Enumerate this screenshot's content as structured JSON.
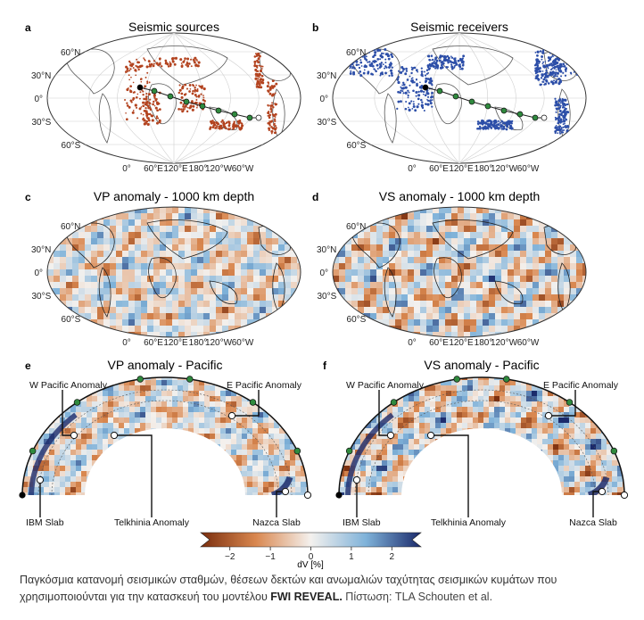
{
  "panels": [
    {
      "letter": "a",
      "title": "Seismic sources",
      "kind": "points",
      "color": "#b3431f"
    },
    {
      "letter": "b",
      "title": "Seismic receivers",
      "kind": "points",
      "color": "#2c4ea8"
    },
    {
      "letter": "c",
      "title": "VP anomaly - 1000 km depth",
      "kind": "field"
    },
    {
      "letter": "d",
      "title": "VS anomaly - 1000 km depth",
      "kind": "field"
    }
  ],
  "map_lat_ticks": [
    "60°N",
    "30°N",
    "0°",
    "30°S",
    "60°S"
  ],
  "map_lon_ticks": [
    "0°",
    "60°E",
    "120°E",
    "180°",
    "120°W",
    "60°W"
  ],
  "sections": [
    {
      "letter": "e",
      "title": "VP anomaly - Pacific",
      "labels": {
        "wpac": "W Pacific Anomaly",
        "epac": "E Pacific Anomaly",
        "ibm": "IBM Slab",
        "telk": "Telkhinia Anomaly",
        "nazca": "Nazca Slab"
      }
    },
    {
      "letter": "f",
      "title": "VS anomaly - Pacific",
      "labels": {
        "wpac": "W Pacific Anomaly",
        "epac": "E Pacific Anomaly",
        "ibm": "IBM Slab",
        "telk": "Telkhinia Anomaly",
        "nazca": "Nazca Slab"
      }
    }
  ],
  "colorbar": {
    "ticks": [
      "−2",
      "−1",
      "0",
      "1",
      "2"
    ],
    "label": "dV [%]",
    "min_color": "#7a2e0e",
    "mid_color": "#f4f1ee",
    "max_color": "#1b2a6b"
  },
  "chart_data": {
    "type": "heatmap",
    "colorbar": {
      "min": -2.5,
      "max": 2.5,
      "ticks": [
        -2,
        -1,
        0,
        1,
        2
      ],
      "label": "dV [%]"
    },
    "maps": [
      "Seismic sources",
      "Seismic receivers",
      "VP anomaly - 1000 km depth",
      "VS anomaly - 1000 km depth"
    ],
    "cross_sections": [
      "VP anomaly - Pacific",
      "VS anomaly - Pacific"
    ]
  },
  "caption": {
    "text": "Παγκόσμια κατανομή σεισμικών σταθμών, θέσεων δεκτών και ανωμαλιών ταχύτητας σεισμικών κυμάτων που χρησιμοποιούνται για την κατασκευή του μοντέλου ",
    "bold": "FWI REVEAL.",
    "credit": " Πίστωση: TLA Schouten et al."
  }
}
